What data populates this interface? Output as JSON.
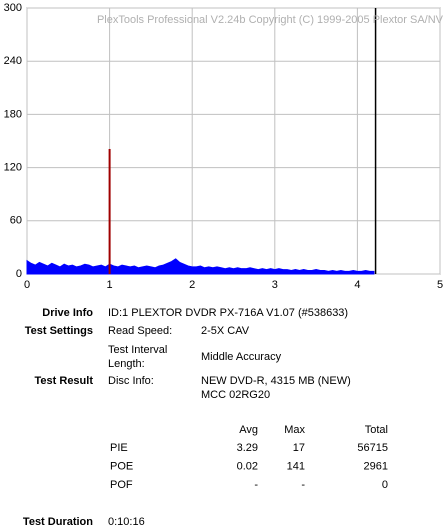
{
  "chart_data": {
    "type": "area",
    "watermark": "PlexTools Professional V2.24b Copyright (C) 1999-2005 Plextor SA/NV",
    "xlim": [
      0,
      5
    ],
    "xticks": [
      0,
      1,
      2,
      3,
      4,
      5
    ],
    "ylim": [
      0,
      300
    ],
    "yticks": [
      0,
      60,
      120,
      180,
      240,
      300
    ],
    "grid": true,
    "series": [
      {
        "name": "PIE",
        "color": "#0000ff",
        "x": [
          0,
          0.05,
          0.1,
          0.15,
          0.2,
          0.25,
          0.3,
          0.35,
          0.4,
          0.45,
          0.5,
          0.55,
          0.6,
          0.65,
          0.7,
          0.75,
          0.8,
          0.85,
          0.9,
          0.95,
          1,
          1.05,
          1.1,
          1.15,
          1.2,
          1.25,
          1.3,
          1.35,
          1.4,
          1.45,
          1.5,
          1.55,
          1.6,
          1.65,
          1.7,
          1.75,
          1.8,
          1.85,
          1.9,
          1.95,
          2,
          2.05,
          2.1,
          2.15,
          2.2,
          2.25,
          2.3,
          2.35,
          2.4,
          2.45,
          2.5,
          2.55,
          2.6,
          2.65,
          2.7,
          2.75,
          2.8,
          2.85,
          2.9,
          2.95,
          3,
          3.05,
          3.1,
          3.15,
          3.2,
          3.25,
          3.3,
          3.35,
          3.4,
          3.45,
          3.5,
          3.55,
          3.6,
          3.65,
          3.7,
          3.75,
          3.8,
          3.85,
          3.9,
          3.95,
          4,
          4.05,
          4.1,
          4.15,
          4.2
        ],
        "values": [
          15,
          12,
          10,
          13,
          11,
          9,
          12,
          10,
          8,
          11,
          9,
          10,
          8,
          9,
          11,
          10,
          8,
          9,
          10,
          8,
          11,
          9,
          8,
          10,
          9,
          8,
          9,
          7,
          8,
          9,
          8,
          7,
          9,
          10,
          12,
          14,
          17,
          13,
          11,
          9,
          8,
          8,
          9,
          7,
          8,
          7,
          8,
          7,
          6,
          7,
          6,
          7,
          6,
          6,
          7,
          6,
          5,
          6,
          5,
          6,
          5,
          6,
          5,
          5,
          4,
          5,
          4,
          5,
          4,
          4,
          5,
          4,
          4,
          3,
          4,
          3,
          4,
          3,
          3,
          4,
          3,
          3,
          4,
          3,
          3
        ]
      },
      {
        "name": "POE",
        "color": "#a00000",
        "x": [
          1
        ],
        "values": [
          141
        ]
      }
    ],
    "end_marker": {
      "x": 4.22,
      "color": "#000000"
    }
  },
  "info": {
    "drive_info": {
      "label": "Drive Info",
      "value": "ID:1 PLEXTOR DVDR PX-716A V1.07 (#538633)"
    },
    "test_settings": {
      "label": "Test Settings",
      "rows": [
        [
          "Read Speed:",
          "2-5X CAV"
        ],
        [
          "Test Interval",
          "Length:",
          "Middle Accuracy"
        ]
      ]
    },
    "test_result": {
      "label": "Test Result",
      "key": "Disc Info:",
      "lines": [
        "NEW DVD-R, 4315 MB (NEW)",
        "MCC 02RG20"
      ]
    },
    "stats": {
      "headers": [
        "Avg",
        "Max",
        "Total"
      ],
      "rows": [
        [
          "PIE",
          "3.29",
          "17",
          "56715"
        ],
        [
          "POE",
          "0.02",
          "141",
          "2961"
        ],
        [
          "POF",
          "-",
          "-",
          "0"
        ]
      ]
    },
    "duration": {
      "label": "Test Duration",
      "value": "0:10:16"
    }
  }
}
